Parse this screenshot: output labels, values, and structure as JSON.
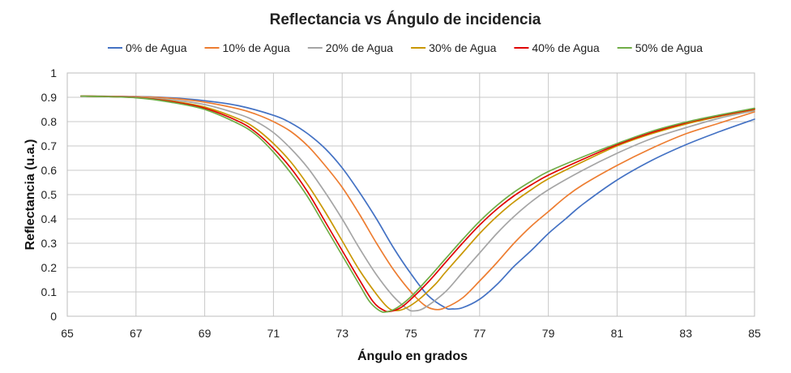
{
  "chart_data": {
    "type": "line",
    "title": "Reflectancia vs Ángulo de incidencia",
    "xlabel": "Ángulo en grados",
    "ylabel": "Reflectancia (u.a.)",
    "xlim": [
      65,
      85
    ],
    "ylim": [
      0,
      1
    ],
    "xticks": [
      "65",
      "67",
      "69",
      "71",
      "73",
      "75",
      "77",
      "79",
      "81",
      "83",
      "85"
    ],
    "yticks": [
      "0",
      "0.1",
      "0.2",
      "0.3",
      "0.4",
      "0.5",
      "0.6",
      "0.7",
      "0.8",
      "0.9",
      "1"
    ],
    "grid": true,
    "legend_position": "top",
    "x_start": 65.4,
    "series": [
      {
        "name": "0% de Agua",
        "color": "#4472C4",
        "points": [
          [
            65.4,
            0.905
          ],
          [
            67,
            0.903
          ],
          [
            68,
            0.898
          ],
          [
            69,
            0.886
          ],
          [
            70,
            0.865
          ],
          [
            71,
            0.826
          ],
          [
            71.5,
            0.795
          ],
          [
            72,
            0.75
          ],
          [
            72.5,
            0.69
          ],
          [
            73,
            0.61
          ],
          [
            73.5,
            0.51
          ],
          [
            74,
            0.4
          ],
          [
            74.5,
            0.28
          ],
          [
            75,
            0.175
          ],
          [
            75.5,
            0.085
          ],
          [
            76,
            0.035
          ],
          [
            76.2,
            0.03
          ],
          [
            76.5,
            0.035
          ],
          [
            77,
            0.07
          ],
          [
            77.5,
            0.13
          ],
          [
            78,
            0.205
          ],
          [
            78.5,
            0.27
          ],
          [
            79,
            0.34
          ],
          [
            79.5,
            0.4
          ],
          [
            80,
            0.46
          ],
          [
            81,
            0.56
          ],
          [
            82,
            0.64
          ],
          [
            83,
            0.705
          ],
          [
            84,
            0.76
          ],
          [
            85,
            0.81
          ]
        ]
      },
      {
        "name": "10% de Agua",
        "color": "#ED7D31",
        "points": [
          [
            65.4,
            0.905
          ],
          [
            67,
            0.902
          ],
          [
            68,
            0.896
          ],
          [
            69,
            0.88
          ],
          [
            70,
            0.852
          ],
          [
            70.5,
            0.83
          ],
          [
            71,
            0.8
          ],
          [
            71.5,
            0.76
          ],
          [
            72,
            0.7
          ],
          [
            72.5,
            0.62
          ],
          [
            73,
            0.53
          ],
          [
            73.5,
            0.42
          ],
          [
            74,
            0.3
          ],
          [
            74.5,
            0.19
          ],
          [
            75,
            0.1
          ],
          [
            75.4,
            0.045
          ],
          [
            75.7,
            0.028
          ],
          [
            76,
            0.035
          ],
          [
            76.5,
            0.075
          ],
          [
            77,
            0.145
          ],
          [
            77.5,
            0.22
          ],
          [
            78,
            0.3
          ],
          [
            78.5,
            0.37
          ],
          [
            79,
            0.43
          ],
          [
            79.5,
            0.49
          ],
          [
            80,
            0.54
          ],
          [
            81,
            0.62
          ],
          [
            82,
            0.69
          ],
          [
            83,
            0.75
          ],
          [
            84,
            0.795
          ],
          [
            85,
            0.84
          ]
        ]
      },
      {
        "name": "20% de Agua",
        "color": "#A5A5A5",
        "points": [
          [
            65.4,
            0.905
          ],
          [
            67,
            0.9
          ],
          [
            68,
            0.89
          ],
          [
            69,
            0.87
          ],
          [
            70,
            0.83
          ],
          [
            70.5,
            0.8
          ],
          [
            71,
            0.755
          ],
          [
            71.5,
            0.69
          ],
          [
            72,
            0.61
          ],
          [
            72.5,
            0.51
          ],
          [
            73,
            0.4
          ],
          [
            73.5,
            0.28
          ],
          [
            74,
            0.17
          ],
          [
            74.5,
            0.08
          ],
          [
            74.9,
            0.03
          ],
          [
            75.1,
            0.022
          ],
          [
            75.4,
            0.035
          ],
          [
            76,
            0.1
          ],
          [
            76.5,
            0.18
          ],
          [
            77,
            0.26
          ],
          [
            77.5,
            0.34
          ],
          [
            78,
            0.41
          ],
          [
            78.5,
            0.47
          ],
          [
            79,
            0.52
          ],
          [
            80,
            0.6
          ],
          [
            81,
            0.67
          ],
          [
            82,
            0.73
          ],
          [
            83,
            0.775
          ],
          [
            84,
            0.815
          ],
          [
            85,
            0.845
          ]
        ]
      },
      {
        "name": "30% de Agua",
        "color": "#C99700",
        "points": [
          [
            65.4,
            0.905
          ],
          [
            67,
            0.899
          ],
          [
            68,
            0.885
          ],
          [
            69,
            0.86
          ],
          [
            70,
            0.81
          ],
          [
            70.5,
            0.77
          ],
          [
            71,
            0.71
          ],
          [
            71.5,
            0.635
          ],
          [
            72,
            0.54
          ],
          [
            72.5,
            0.43
          ],
          [
            73,
            0.31
          ],
          [
            73.5,
            0.19
          ],
          [
            74,
            0.09
          ],
          [
            74.3,
            0.04
          ],
          [
            74.5,
            0.024
          ],
          [
            74.8,
            0.03
          ],
          [
            75.2,
            0.065
          ],
          [
            75.7,
            0.13
          ],
          [
            76,
            0.18
          ],
          [
            76.5,
            0.26
          ],
          [
            77,
            0.34
          ],
          [
            77.5,
            0.41
          ],
          [
            78,
            0.47
          ],
          [
            78.5,
            0.52
          ],
          [
            79,
            0.565
          ],
          [
            80,
            0.635
          ],
          [
            81,
            0.7
          ],
          [
            82,
            0.75
          ],
          [
            83,
            0.79
          ],
          [
            84,
            0.822
          ],
          [
            85,
            0.85
          ]
        ]
      },
      {
        "name": "40% de Agua",
        "color": "#E00000",
        "points": [
          [
            65.4,
            0.905
          ],
          [
            67,
            0.899
          ],
          [
            68,
            0.883
          ],
          [
            69,
            0.855
          ],
          [
            70,
            0.8
          ],
          [
            70.5,
            0.755
          ],
          [
            71,
            0.69
          ],
          [
            71.5,
            0.61
          ],
          [
            72,
            0.51
          ],
          [
            72.5,
            0.39
          ],
          [
            73,
            0.27
          ],
          [
            73.5,
            0.15
          ],
          [
            73.9,
            0.06
          ],
          [
            74.2,
            0.025
          ],
          [
            74.4,
            0.02
          ],
          [
            74.7,
            0.035
          ],
          [
            75,
            0.07
          ],
          [
            75.5,
            0.14
          ],
          [
            76,
            0.22
          ],
          [
            76.5,
            0.3
          ],
          [
            77,
            0.375
          ],
          [
            77.5,
            0.44
          ],
          [
            78,
            0.495
          ],
          [
            78.5,
            0.54
          ],
          [
            79,
            0.58
          ],
          [
            80,
            0.645
          ],
          [
            81,
            0.705
          ],
          [
            82,
            0.755
          ],
          [
            83,
            0.795
          ],
          [
            84,
            0.825
          ],
          [
            85,
            0.852
          ]
        ]
      },
      {
        "name": "50% de Agua",
        "color": "#70AD47",
        "points": [
          [
            65.4,
            0.905
          ],
          [
            67,
            0.898
          ],
          [
            68,
            0.88
          ],
          [
            69,
            0.85
          ],
          [
            70,
            0.79
          ],
          [
            70.5,
            0.745
          ],
          [
            71,
            0.675
          ],
          [
            71.5,
            0.59
          ],
          [
            72,
            0.49
          ],
          [
            72.5,
            0.37
          ],
          [
            73,
            0.25
          ],
          [
            73.5,
            0.13
          ],
          [
            73.8,
            0.06
          ],
          [
            74.1,
            0.022
          ],
          [
            74.3,
            0.018
          ],
          [
            74.6,
            0.035
          ],
          [
            75,
            0.08
          ],
          [
            75.5,
            0.155
          ],
          [
            76,
            0.235
          ],
          [
            76.5,
            0.315
          ],
          [
            77,
            0.39
          ],
          [
            77.5,
            0.455
          ],
          [
            78,
            0.51
          ],
          [
            78.5,
            0.555
          ],
          [
            79,
            0.595
          ],
          [
            80,
            0.655
          ],
          [
            81,
            0.71
          ],
          [
            82,
            0.76
          ],
          [
            83,
            0.798
          ],
          [
            84,
            0.828
          ],
          [
            85,
            0.855
          ]
        ]
      }
    ]
  }
}
